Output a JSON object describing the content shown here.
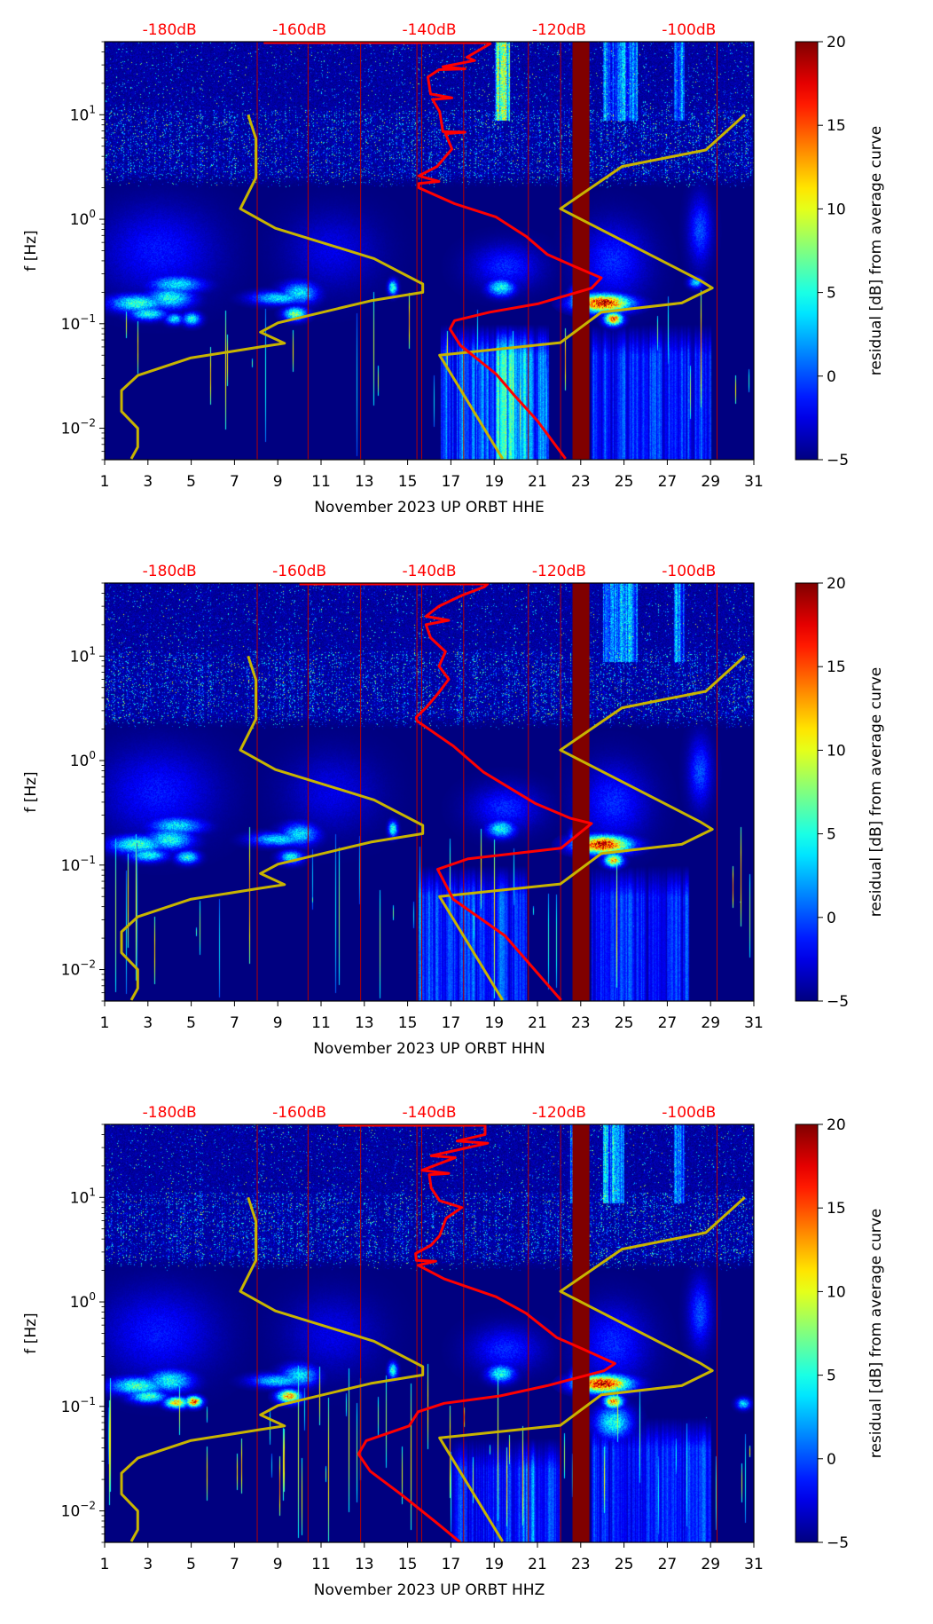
{
  "chart_data": {
    "type": "heatmap",
    "title": "",
    "ylabel": "f [Hz]",
    "xlim_days": [
      1,
      31
    ],
    "ylim_hz": [
      0.005,
      50
    ],
    "y_scale": "log",
    "x_ticks": [
      "1",
      "3",
      "5",
      "7",
      "9",
      "11",
      "13",
      "15",
      "17",
      "19",
      "21",
      "23",
      "25",
      "27",
      "29",
      "31"
    ],
    "y_ticks": [
      {
        "value": 0.01,
        "base": "10",
        "exp": "−2"
      },
      {
        "value": 0.1,
        "base": "10",
        "exp": "−1"
      },
      {
        "value": 1,
        "base": "10",
        "exp": "0"
      },
      {
        "value": 10,
        "base": "10",
        "exp": "1"
      }
    ],
    "top_axis": {
      "unit": "dB",
      "ticks": [
        {
          "value": -180,
          "label": "-180dB"
        },
        {
          "value": -160,
          "label": "-160dB"
        },
        {
          "value": -140,
          "label": "-140dB"
        },
        {
          "value": -120,
          "label": "-120dB"
        },
        {
          "value": -100,
          "label": "-100dB"
        }
      ]
    },
    "colorbar": {
      "label": "residual [dB] from average curve",
      "range": [
        -5,
        20
      ],
      "ticks": [
        {
          "value": 20,
          "label": "20"
        },
        {
          "value": 15,
          "label": "15"
        },
        {
          "value": 10,
          "label": "10"
        },
        {
          "value": 5,
          "label": "5"
        },
        {
          "value": 0,
          "label": "0"
        },
        {
          "value": -5,
          "label": "−5"
        }
      ],
      "colormap": "jet"
    },
    "event_lines_days": [
      8.05,
      10.4,
      12.83,
      15.43,
      15.65,
      17.59,
      20.58,
      22.07,
      29.3
    ],
    "gap_band_days": [
      22.62,
      23.4
    ],
    "colors": {
      "average_curve": "#ff0000",
      "noise_models": "#c8b400",
      "event_lines": "#b40000",
      "gap_band": "#800000"
    },
    "noise_models": {
      "low": [
        [
          -167.9,
          10
        ],
        [
          -166.7,
          5.9
        ],
        [
          -166.7,
          2.5
        ],
        [
          -169.1,
          1.26
        ],
        [
          -163.7,
          0.82
        ],
        [
          -148.5,
          0.42
        ],
        [
          -141.0,
          0.24
        ],
        [
          -141.0,
          0.2
        ],
        [
          -149.0,
          0.166
        ],
        [
          -163.3,
          0.102
        ],
        [
          -166.0,
          0.083
        ],
        [
          -162.3,
          0.065
        ],
        [
          -166.0,
          0.06
        ],
        [
          -176.8,
          0.047
        ],
        [
          -184.9,
          0.032
        ],
        [
          -187.4,
          0.023
        ],
        [
          -187.4,
          0.0145
        ],
        [
          -184.9,
          0.01
        ],
        [
          -184.9,
          0.0066
        ],
        [
          -185.9,
          0.0051
        ]
      ],
      "high": [
        [
          -91.4,
          10
        ],
        [
          -97.4,
          4.6
        ],
        [
          -110.3,
          3.2
        ],
        [
          -119.8,
          1.26
        ],
        [
          -98.3,
          0.26
        ],
        [
          -96.4,
          0.22
        ],
        [
          -101.1,
          0.158
        ],
        [
          -113.5,
          0.129
        ],
        [
          -119.8,
          0.066
        ],
        [
          -138.4,
          0.05
        ],
        [
          -128.7,
          0.0051
        ]
      ]
    },
    "panels": [
      {
        "channel": "HHE",
        "xlabel": "November 2023 UP ORBT  HHE",
        "average_curve": [
          [
            -165.5,
            49
          ],
          [
            -131,
            49
          ],
          [
            -130.6,
            47.9
          ],
          [
            -134.2,
            35.5
          ],
          [
            -133,
            33
          ],
          [
            -137.9,
            28.8
          ],
          [
            -134.5,
            27.5
          ],
          [
            -138.5,
            27
          ],
          [
            -140.2,
            22.9
          ],
          [
            -139.8,
            15.8
          ],
          [
            -136.5,
            14.5
          ],
          [
            -139.5,
            14
          ],
          [
            -138.4,
            10.7
          ],
          [
            -137.9,
            6.9
          ],
          [
            -134.5,
            6.8
          ],
          [
            -137.5,
            6.6
          ],
          [
            -136.5,
            4.7
          ],
          [
            -138.8,
            3.2
          ],
          [
            -141.6,
            2.6
          ],
          [
            -138.5,
            2.3
          ],
          [
            -141.6,
            2.2
          ],
          [
            -141.6,
            2.0
          ],
          [
            -136.1,
            1.41
          ],
          [
            -129.7,
            1.05
          ],
          [
            -125.0,
            0.68
          ],
          [
            -121.8,
            0.46
          ],
          [
            -117.7,
            0.355
          ],
          [
            -113.5,
            0.275
          ],
          [
            -115.0,
            0.219
          ],
          [
            -123.3,
            0.155
          ],
          [
            -130.7,
            0.129
          ],
          [
            -136.1,
            0.107
          ],
          [
            -136.8,
            0.089
          ],
          [
            -135.2,
            0.062
          ],
          [
            -129.7,
            0.033
          ],
          [
            -127.0,
            0.021
          ],
          [
            -123.3,
            0.0117
          ],
          [
            -119.0,
            0.0051
          ]
        ]
      },
      {
        "channel": "HHN",
        "xlabel": "November 2023 UP ORBT  HHN",
        "average_curve": [
          [
            -160,
            49
          ],
          [
            -131,
            49
          ],
          [
            -131.5,
            46
          ],
          [
            -135,
            38
          ],
          [
            -138.5,
            30
          ],
          [
            -140.5,
            24
          ],
          [
            -137,
            22
          ],
          [
            -140.5,
            20
          ],
          [
            -139.8,
            15
          ],
          [
            -137.5,
            11
          ],
          [
            -138.5,
            8
          ],
          [
            -137,
            6
          ],
          [
            -138.5,
            4.5
          ],
          [
            -140.5,
            3.2
          ],
          [
            -142,
            2.6
          ],
          [
            -141.9,
            2.4
          ],
          [
            -136.3,
            1.38
          ],
          [
            -131.7,
            0.78
          ],
          [
            -123.7,
            0.39
          ],
          [
            -118.2,
            0.28
          ],
          [
            -115.0,
            0.25
          ],
          [
            -119.7,
            0.145
          ],
          [
            -134,
            0.115
          ],
          [
            -138.7,
            0.091
          ],
          [
            -136.3,
            0.047
          ],
          [
            -128.3,
            0.021
          ],
          [
            -119.7,
            0.0051
          ]
        ]
      },
      {
        "channel": "HHZ",
        "xlabel": "November 2023 UP ORBT  HHZ",
        "average_curve": [
          [
            -154,
            49
          ],
          [
            -131.4,
            49
          ],
          [
            -131.4,
            40
          ],
          [
            -135.7,
            34.7
          ],
          [
            -131,
            33
          ],
          [
            -139.7,
            25
          ],
          [
            -136,
            24
          ],
          [
            -141.1,
            18.2
          ],
          [
            -137,
            17
          ],
          [
            -140,
            16.5
          ],
          [
            -139.7,
            12.3
          ],
          [
            -138.4,
            9.3
          ],
          [
            -135,
            8
          ],
          [
            -137.4,
            6.3
          ],
          [
            -138.4,
            4.3
          ],
          [
            -139.7,
            3.5
          ],
          [
            -142.1,
            2.9
          ],
          [
            -142,
            2.5
          ],
          [
            -139,
            2.45
          ],
          [
            -141.7,
            2.24
          ],
          [
            -137.7,
            1.66
          ],
          [
            -129.7,
            1.12
          ],
          [
            -125.1,
            0.78
          ],
          [
            -120.4,
            0.457
          ],
          [
            -116.4,
            0.355
          ],
          [
            -111.4,
            0.257
          ],
          [
            -113.1,
            0.219
          ],
          [
            -121.8,
            0.158
          ],
          [
            -129.1,
            0.126
          ],
          [
            -137.7,
            0.107
          ],
          [
            -141.7,
            0.089
          ],
          [
            -143.1,
            0.065
          ],
          [
            -149.7,
            0.047
          ],
          [
            -150.9,
            0.035
          ],
          [
            -149.1,
            0.024
          ],
          [
            -144.4,
            0.0145
          ],
          [
            -139.1,
            0.0079
          ],
          [
            -135.2,
            0.005
          ]
        ]
      }
    ]
  }
}
